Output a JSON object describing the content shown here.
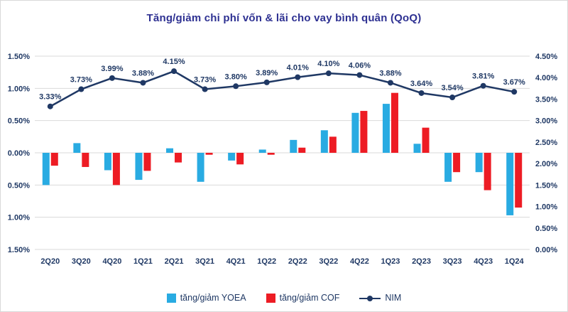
{
  "title": "Tăng/giảm chi phí vốn & lãi cho vay bình quân (QoQ)",
  "colors": {
    "yoea": "#29ABE2",
    "cof": "#ED1C24",
    "nim": "#1F3864",
    "title": "#2E3192",
    "axis_text": "#1F3864",
    "grid": "#D9D9D9",
    "background": "#FFFFFF"
  },
  "legend": {
    "yoea_label": "tăng/giảm YOEA",
    "cof_label": "tăng/giảm COF",
    "nim_label": "NIM"
  },
  "chart_data": {
    "type": "combo",
    "categories": [
      "2Q20",
      "3Q20",
      "4Q20",
      "1Q21",
      "2Q21",
      "3Q21",
      "4Q21",
      "1Q22",
      "2Q22",
      "3Q22",
      "4Q22",
      "1Q23",
      "2Q23",
      "3Q23",
      "4Q23",
      "1Q24"
    ],
    "series": [
      {
        "name": "tăng/giảm YOEA",
        "type": "bar",
        "axis": "left",
        "values": [
          -0.5,
          0.15,
          -0.27,
          -0.42,
          0.07,
          -0.45,
          -0.12,
          0.05,
          0.2,
          0.35,
          0.62,
          0.76,
          0.14,
          -0.45,
          -0.3,
          -0.97
        ]
      },
      {
        "name": "tăng/giảm COF",
        "type": "bar",
        "axis": "left",
        "values": [
          -0.2,
          -0.22,
          -0.5,
          -0.28,
          -0.15,
          -0.03,
          -0.18,
          -0.03,
          0.08,
          0.25,
          0.65,
          0.93,
          0.39,
          -0.3,
          -0.58,
          -0.85
        ]
      },
      {
        "name": "NIM",
        "type": "line",
        "axis": "right",
        "values": [
          3.33,
          3.73,
          3.99,
          3.88,
          4.15,
          3.73,
          3.8,
          3.89,
          4.01,
          4.1,
          4.06,
          3.88,
          3.64,
          3.54,
          3.81,
          3.67
        ],
        "labels": [
          "3.33%",
          "3.73%",
          "3.99%",
          "3.88%",
          "4.15%",
          "3.73%",
          "3.80%",
          "3.89%",
          "4.01%",
          "4.10%",
          "4.06%",
          "3.88%",
          "3.64%",
          "3.54%",
          "3.81%",
          "3.67%"
        ]
      }
    ],
    "left_axis": {
      "min": -1.5,
      "max": 1.5,
      "tick_values": [
        1.5,
        1.0,
        0.5,
        0,
        -0.5,
        -1.0,
        -1.5
      ],
      "ticks": [
        "1.50%",
        "1.00%",
        "0.50%",
        "0.00%",
        "0.50%",
        "1.00%",
        "1.50%"
      ]
    },
    "right_axis": {
      "min": 0,
      "max": 4.5,
      "tick_values": [
        4.5,
        4.0,
        3.5,
        3.0,
        2.5,
        2.0,
        1.5,
        1.0,
        0.5,
        0
      ],
      "ticks": [
        "4.50%",
        "4.00%",
        "3.50%",
        "3.00%",
        "2.50%",
        "2.00%",
        "1.50%",
        "1.00%",
        "0.50%",
        "0.00%"
      ]
    },
    "grid": true,
    "legend_position": "bottom"
  }
}
